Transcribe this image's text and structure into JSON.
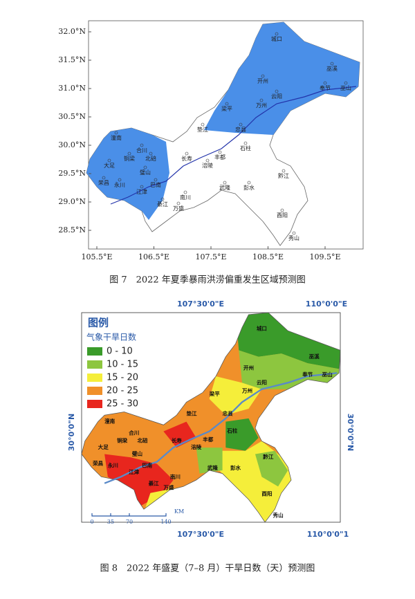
{
  "figure7": {
    "lat_labels": [
      "32.0°N",
      "31.5°N",
      "31.0°N",
      "30.5°N",
      "30.0°N",
      "29.5°N",
      "29.0°N",
      "28.5°N"
    ],
    "lon_labels": [
      "105.5°E",
      "106.5°E",
      "107.5°E",
      "108.5°E",
      "109.5°E"
    ],
    "cities": [
      "城口",
      "巫溪",
      "开州",
      "奉节",
      "巫山",
      "云阳",
      "梁平",
      "万州",
      "忠县",
      "垫江",
      "石柱",
      "潼南",
      "合川",
      "铜梁",
      "北碚",
      "大足",
      "璧山",
      "荣昌",
      "永川",
      "江津",
      "巴南",
      "长寿",
      "涪陵",
      "丰都",
      "武隆",
      "彭水",
      "黔江",
      "南川",
      "綦江",
      "万盛",
      "酉阳",
      "秀山"
    ],
    "caption": "图 7　2022 年夏季暴雨洪涝偏重发生区域预测图"
  },
  "figure8": {
    "legend": {
      "title": "图例",
      "subtitle": "气象干旱日数",
      "items": [
        {
          "label": "0 - 10",
          "color": "#3a9b2a"
        },
        {
          "label": "10 - 15",
          "color": "#8dc63f"
        },
        {
          "label": "15 - 20",
          "color": "#f5ee3a"
        },
        {
          "label": "20 - 25",
          "color": "#f0902a"
        },
        {
          "label": "25 - 30",
          "color": "#e8261e"
        }
      ]
    },
    "top_lon_labels": [
      "107°30'0\"E",
      "110°0'0\"E"
    ],
    "bottom_lon_labels": [
      "107°30'0\"E",
      "110°0'0\"1"
    ],
    "lat_label": "30°0'0\"N",
    "cities": [
      "城口",
      "巫溪",
      "开州",
      "奉节",
      "巫山",
      "云阳",
      "梁平",
      "万州",
      "忠县",
      "垫江",
      "石柱",
      "潼南",
      "合川",
      "铜梁",
      "北碚",
      "大足",
      "璧山",
      "荣昌",
      "永川",
      "江津",
      "巴南",
      "长寿",
      "涪陵",
      "丰都",
      "武隆",
      "彭水",
      "黔江",
      "南川",
      "綦江",
      "万盛",
      "酉阳",
      "秀山"
    ],
    "scale": {
      "ticks": [
        "0",
        "35",
        "70",
        "140"
      ],
      "unit": "KM"
    },
    "caption": "图 8　2022 年盛夏（7–8 月）干旱日数（天）预测图"
  }
}
